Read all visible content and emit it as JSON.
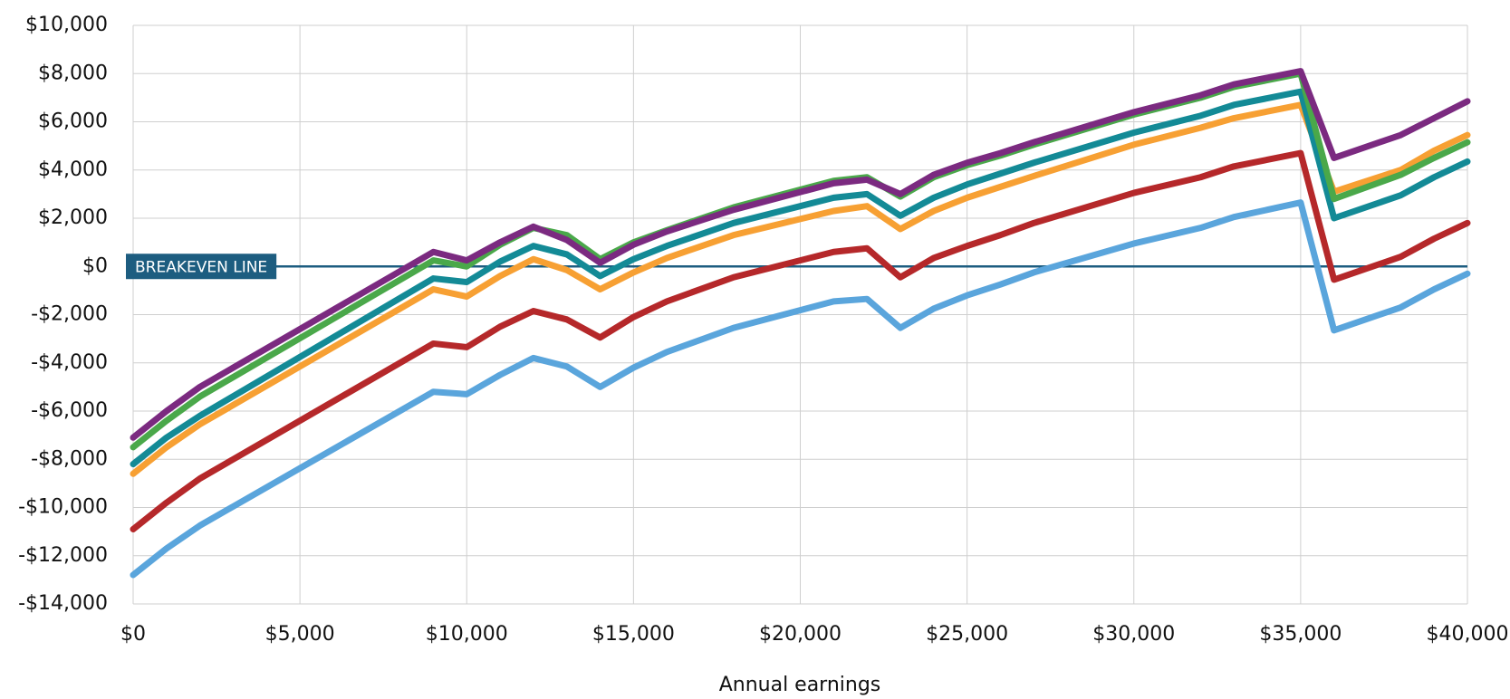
{
  "chart_data": {
    "type": "line",
    "xlabel": "Annual earnings",
    "annotation": {
      "label": "BREAKEVEN LINE",
      "value": 0,
      "color": "#1d5d80"
    },
    "x": [
      0,
      1000,
      2000,
      9000,
      10000,
      11000,
      12000,
      13000,
      14000,
      15000,
      16000,
      18000,
      21000,
      22000,
      23000,
      24000,
      25000,
      26000,
      27000,
      30000,
      32000,
      33000,
      35000,
      36000,
      38000,
      39000,
      40000
    ],
    "series": [
      {
        "color": "#5aa5dc",
        "values": [
          -12800,
          -11700,
          -10750,
          -5200,
          -5300,
          -4500,
          -3800,
          -4150,
          -5000,
          -4200,
          -3550,
          -2550,
          -1450,
          -1350,
          -2550,
          -1750,
          -1200,
          -750,
          -250,
          950,
          1600,
          2050,
          2650,
          -2650,
          -1700,
          -950,
          -300
        ]
      },
      {
        "color": "#b5282a",
        "values": [
          -10900,
          -9800,
          -8800,
          -3200,
          -3350,
          -2500,
          -1850,
          -2200,
          -2950,
          -2100,
          -1450,
          -450,
          600,
          750,
          -450,
          350,
          850,
          1300,
          1800,
          3050,
          3700,
          4150,
          4700,
          -550,
          400,
          1150,
          1800
        ]
      },
      {
        "color": "#f7a033",
        "values": [
          -8600,
          -7500,
          -6550,
          -950,
          -1250,
          -400,
          300,
          -150,
          -950,
          -250,
          350,
          1300,
          2300,
          2500,
          1550,
          2300,
          2850,
          3300,
          3750,
          5050,
          5750,
          6150,
          6700,
          3100,
          4000,
          4800,
          5450
        ]
      },
      {
        "color": "#138a96",
        "values": [
          -8200,
          -7100,
          -6200,
          -500,
          -650,
          200,
          850,
          500,
          -400,
          300,
          850,
          1800,
          2850,
          3000,
          2100,
          2850,
          3400,
          3850,
          4300,
          5550,
          6250,
          6700,
          7250,
          2000,
          2950,
          3700,
          4350
        ]
      },
      {
        "color": "#4aa84a",
        "values": [
          -7500,
          -6400,
          -5400,
          250,
          0,
          900,
          1600,
          1300,
          300,
          1000,
          1500,
          2450,
          3550,
          3700,
          2900,
          3700,
          4200,
          4600,
          5050,
          6300,
          7000,
          7450,
          8000,
          2800,
          3800,
          4500,
          5150
        ]
      },
      {
        "color": "#7b2a80",
        "values": [
          -7100,
          -6000,
          -5000,
          600,
          250,
          1000,
          1650,
          1100,
          150,
          900,
          1450,
          2350,
          3450,
          3600,
          3000,
          3800,
          4300,
          4700,
          5150,
          6400,
          7100,
          7550,
          8100,
          4500,
          5450,
          6150,
          6850
        ]
      }
    ],
    "xlim": [
      0,
      40000
    ],
    "xticks": [
      {
        "value": 0,
        "label": "$0"
      },
      {
        "value": 5000,
        "label": "$5,000"
      },
      {
        "value": 10000,
        "label": "$10,000"
      },
      {
        "value": 15000,
        "label": "$15,000"
      },
      {
        "value": 20000,
        "label": "$20,000"
      },
      {
        "value": 25000,
        "label": "$25,000"
      },
      {
        "value": 30000,
        "label": "$30,000"
      },
      {
        "value": 35000,
        "label": "$35,000"
      },
      {
        "value": 40000,
        "label": "$40,000"
      }
    ],
    "ylim": [
      -14000,
      10000
    ],
    "yticks": [
      {
        "value": -14000,
        "label": "-$14,000"
      },
      {
        "value": -12000,
        "label": "-$12,000"
      },
      {
        "value": -10000,
        "label": "-$10,000"
      },
      {
        "value": -8000,
        "label": "-$8,000"
      },
      {
        "value": -6000,
        "label": "-$6,000"
      },
      {
        "value": -4000,
        "label": "-$4,000"
      },
      {
        "value": -2000,
        "label": "-$2,000"
      },
      {
        "value": 0,
        "label": "$0"
      },
      {
        "value": 2000,
        "label": "$2,000"
      },
      {
        "value": 4000,
        "label": "$4,000"
      },
      {
        "value": 6000,
        "label": "$6,000"
      },
      {
        "value": 8000,
        "label": "$8,000"
      },
      {
        "value": 10000,
        "label": "$10,000"
      }
    ],
    "grid": true
  }
}
